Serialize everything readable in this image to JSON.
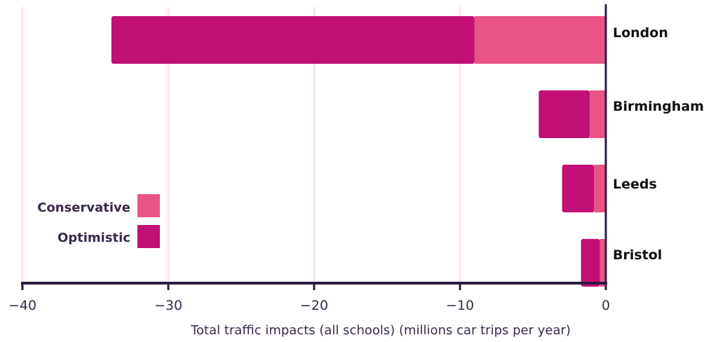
{
  "chart_data": {
    "type": "bar",
    "orientation": "horizontal",
    "stacked": true,
    "categories": [
      "London",
      "Birmingham",
      "Leeds",
      "Bristol"
    ],
    "series": [
      {
        "name": "Conservative",
        "color": "#e85585",
        "values": [
          -9.0,
          -1.1,
          -0.8,
          -0.4
        ]
      },
      {
        "name": "Optimistic",
        "color": "#c20f75",
        "values": [
          -24.9,
          -3.5,
          -2.2,
          -1.3
        ]
      }
    ],
    "xlim": [
      -40,
      0
    ],
    "xticks": [
      -40,
      -30,
      -20,
      -10,
      0
    ],
    "xtick_labels": [
      "−40",
      "−30",
      "−20",
      "−10",
      "0"
    ],
    "xlabel": "Total traffic impacts (all schools) (millions car trips per year)",
    "grid": true,
    "legend_position": "lower-left"
  },
  "colors": {
    "grid": "#fce4ec",
    "axis": "#2d1b40"
  }
}
